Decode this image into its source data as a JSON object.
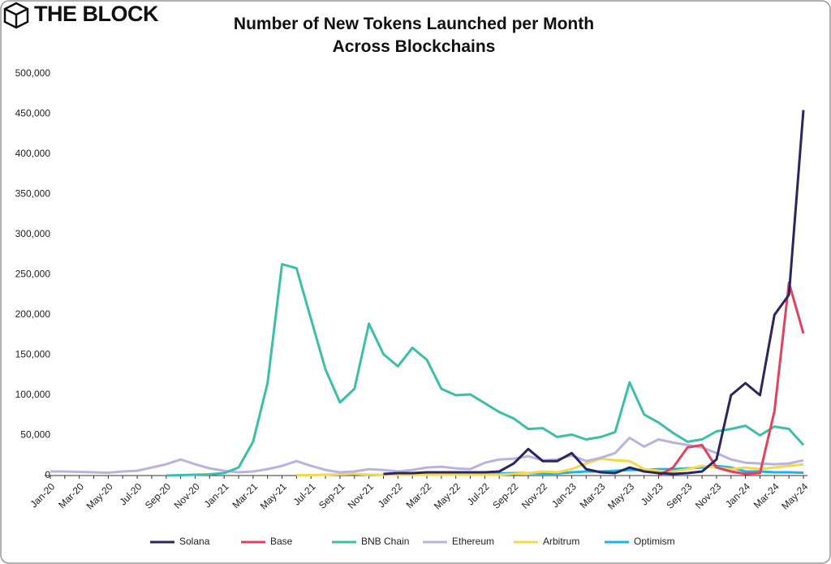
{
  "brand": "THE BLOCK",
  "chart_data": {
    "type": "line",
    "title": "Number of New Tokens Launched per Month Across Blockchains",
    "categories": [
      "Jan-20",
      null,
      "Mar-20",
      null,
      "May-20",
      null,
      "Jul-20",
      null,
      "Sep-20",
      null,
      "Nov-20",
      null,
      "Jan-21",
      null,
      "Mar-21",
      null,
      "May-21",
      null,
      "Jul-21",
      null,
      "Sep-21",
      null,
      "Nov-21",
      null,
      "Jan-22",
      null,
      "Mar-22",
      null,
      "May-22",
      null,
      "Jul-22",
      null,
      "Sep-22",
      null,
      "Nov-22",
      null,
      "Jan-23",
      null,
      "Mar-23",
      null,
      "May-23",
      null,
      "Jul-23",
      null,
      "Sep-23",
      null,
      "Nov-23",
      null,
      "Jan-24",
      null,
      "Mar-24",
      null,
      "May-24"
    ],
    "ylim": [
      0,
      500000
    ],
    "yticks": [
      0,
      {
        "value": 50000,
        "label": "50,000"
      },
      {
        "value": 100000,
        "label": "100,000"
      },
      {
        "value": 150000,
        "label": "150,000"
      },
      {
        "value": 200000,
        "label": "200,000"
      },
      {
        "value": 250000,
        "label": "250,000"
      },
      {
        "value": 300000,
        "label": "300,000"
      },
      {
        "value": 350000,
        "label": "350,000"
      },
      {
        "value": 400000,
        "label": "400,000"
      },
      {
        "value": 450000,
        "label": "450,000"
      },
      {
        "value": 500000,
        "label": "500,000"
      }
    ],
    "legend": "bottom",
    "series": [
      {
        "name": "Solana",
        "color": "#2a2660",
        "values": [
          null,
          null,
          null,
          null,
          null,
          null,
          null,
          null,
          null,
          null,
          null,
          null,
          null,
          null,
          null,
          null,
          null,
          null,
          null,
          null,
          null,
          null,
          null,
          2000,
          3000,
          3000,
          4000,
          4000,
          4000,
          4000,
          4000,
          5000,
          15000,
          33000,
          18000,
          18000,
          28000,
          8000,
          4000,
          3000,
          10000,
          5000,
          3000,
          2000,
          3000,
          5000,
          20000,
          100000,
          115000,
          100000,
          200000,
          225000,
          455000
        ]
      },
      {
        "name": "Base",
        "color": "#e0435e",
        "values": [
          null,
          null,
          null,
          null,
          null,
          null,
          null,
          null,
          null,
          null,
          null,
          null,
          null,
          null,
          null,
          null,
          null,
          null,
          null,
          null,
          null,
          null,
          null,
          null,
          null,
          null,
          null,
          null,
          null,
          null,
          null,
          null,
          null,
          null,
          null,
          null,
          null,
          null,
          null,
          null,
          null,
          null,
          0,
          10000,
          35000,
          38000,
          10000,
          5000,
          2000,
          3000,
          80000,
          240000,
          177000
        ]
      },
      {
        "name": "BNB Chain",
        "color": "#3cbfa8",
        "values": [
          null,
          null,
          null,
          null,
          null,
          null,
          null,
          null,
          0,
          500,
          1000,
          1500,
          3000,
          10000,
          42000,
          115000,
          263000,
          258000,
          195000,
          132000,
          91000,
          108000,
          189000,
          151000,
          136000,
          159000,
          144000,
          108000,
          100000,
          101000,
          90000,
          79000,
          71000,
          58000,
          59000,
          48000,
          51000,
          45000,
          48000,
          54000,
          116000,
          76000,
          66000,
          53000,
          42000,
          45000,
          55000,
          58000,
          62000,
          50000,
          61000,
          58000,
          38000
        ]
      },
      {
        "name": "Ethereum",
        "color": "#b9b3e0",
        "values": [
          5000,
          5000,
          4500,
          4000,
          3500,
          5000,
          6000,
          10000,
          14000,
          20000,
          14000,
          9000,
          6000,
          4000,
          5000,
          8000,
          12000,
          18000,
          12000,
          7000,
          4000,
          5000,
          8000,
          7000,
          5000,
          7000,
          10000,
          11000,
          9000,
          8000,
          16000,
          20000,
          21000,
          24000,
          19000,
          20000,
          25000,
          18000,
          22000,
          28000,
          47000,
          36000,
          45000,
          41000,
          38000,
          35000,
          28000,
          20000,
          16000,
          15000,
          14000,
          15000,
          19000
        ]
      },
      {
        "name": "Arbitrum",
        "color": "#f5d94a",
        "values": [
          null,
          null,
          null,
          null,
          null,
          null,
          null,
          null,
          null,
          null,
          null,
          null,
          null,
          null,
          null,
          null,
          null,
          500,
          500,
          1000,
          1500,
          2000,
          1000,
          1000,
          1000,
          1000,
          1000,
          1000,
          1000,
          1000,
          1000,
          1000,
          2000,
          3000,
          5000,
          4000,
          8000,
          15000,
          21000,
          19000,
          18000,
          8000,
          6000,
          5000,
          8000,
          12000,
          10000,
          8000,
          10000,
          8000,
          10000,
          12000,
          14000
        ]
      },
      {
        "name": "Optimism",
        "color": "#1ab4e6",
        "values": [
          null,
          null,
          null,
          null,
          null,
          null,
          null,
          null,
          null,
          null,
          null,
          null,
          null,
          null,
          null,
          null,
          null,
          null,
          null,
          null,
          null,
          null,
          500,
          1000,
          1000,
          1000,
          1000,
          1000,
          1000,
          1500,
          2000,
          2500,
          3000,
          3000,
          2500,
          2500,
          4000,
          5000,
          5000,
          6000,
          7000,
          7000,
          8000,
          8000,
          9000,
          10000,
          12000,
          10000,
          5000,
          5000,
          4000,
          4000,
          3500
        ]
      }
    ]
  }
}
